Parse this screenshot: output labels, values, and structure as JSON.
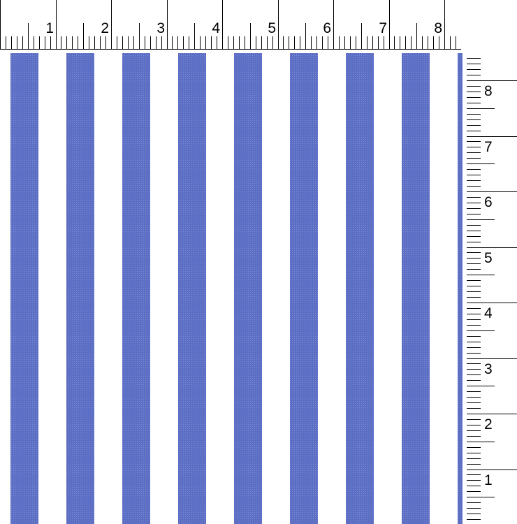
{
  "pattern": {
    "name": "vertical-stripes",
    "stripe_color": "#5b6ec4",
    "background_color": "#ffffff"
  },
  "top_ruler": {
    "labels": [
      "1",
      "2",
      "3",
      "4",
      "5",
      "6",
      "7",
      "8"
    ]
  },
  "right_ruler": {
    "labels": [
      "8",
      "7",
      "6",
      "5",
      "4",
      "3",
      "2",
      "1"
    ]
  }
}
